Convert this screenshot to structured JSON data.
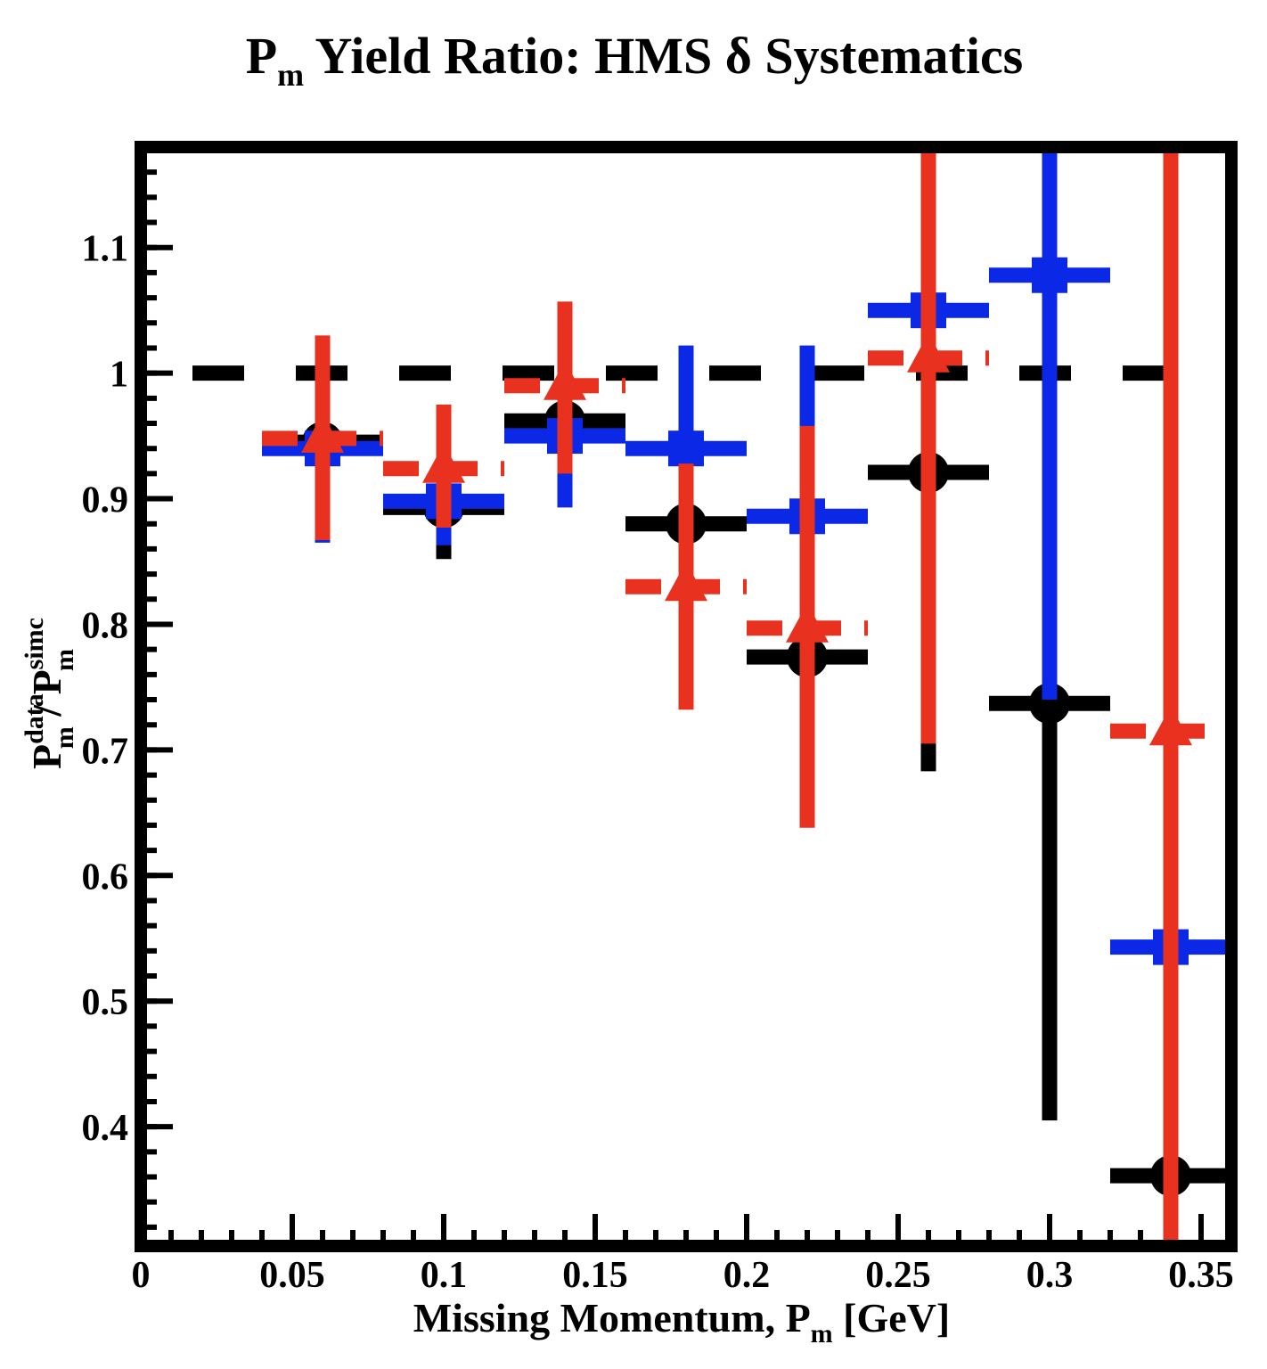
{
  "chart_data": {
    "type": "scatter",
    "title": "P",
    "title_sub": "m",
    "title_rest": " Yield Ratio: HMS  δ Systematics",
    "xlabel": "Missing Momentum, P",
    "xlabel_sub": "m",
    "xlabel_rest": " [GeV]",
    "ylabel_num": "P",
    "ylabel_num_sup": "data",
    "ylabel_num_sub": "m",
    "ylabel_sep": " / P",
    "ylabel_den_sup": "simc",
    "ylabel_den_sub": "m",
    "xlim": [
      0,
      0.36
    ],
    "ylim": [
      0.305,
      1.18
    ],
    "x_ticks": [
      "0",
      "0.05",
      "0.1",
      "0.15",
      "0.2",
      "0.25",
      "0.3",
      "0.35"
    ],
    "x_tick_values": [
      0,
      0.05,
      0.1,
      0.15,
      0.2,
      0.25,
      0.3,
      0.35
    ],
    "y_ticks": [
      "0.4",
      "0.5",
      "0.6",
      "0.7",
      "0.8",
      "0.9",
      "1",
      "1.1"
    ],
    "y_tick_values": [
      0.4,
      0.5,
      0.6,
      0.7,
      0.8,
      0.9,
      1.0,
      1.1
    ],
    "reference_line": {
      "y": 1.0,
      "style": "dashed",
      "color": "#000000"
    },
    "grid": false,
    "legend": "none",
    "bin_half_width": 0.02,
    "series": [
      {
        "color": "#000000",
        "marker": "circle",
        "line_style": "solid",
        "x": [
          0.06,
          0.1,
          0.14,
          0.18,
          0.22,
          0.26,
          0.3,
          0.34
        ],
        "y": [
          0.945,
          0.893,
          0.962,
          0.88,
          0.774,
          0.921,
          0.737,
          0.361
        ],
        "y_err_low": [
          0.945,
          0.852,
          0.962,
          0.845,
          0.774,
          0.683,
          0.405,
          0.305
        ],
        "y_err_high": [
          0.945,
          0.893,
          0.962,
          0.88,
          0.774,
          0.921,
          0.737,
          0.361
        ]
      },
      {
        "color": "#0a28e6",
        "marker": "square",
        "line_style": "solid",
        "x": [
          0.06,
          0.1,
          0.14,
          0.18,
          0.22,
          0.26,
          0.3,
          0.34
        ],
        "y": [
          0.94,
          0.898,
          0.95,
          0.94,
          0.886,
          1.05,
          1.078,
          0.543
        ],
        "y_err_low": [
          0.865,
          0.863,
          0.893,
          0.94,
          0.886,
          1.05,
          0.74,
          0.543
        ],
        "y_err_high": [
          0.97,
          0.94,
          0.985,
          1.022,
          1.022,
          1.09,
          1.18,
          0.735
        ]
      },
      {
        "color": "#e8311f",
        "marker": "triangle",
        "line_style": "dashed",
        "x": [
          0.06,
          0.1,
          0.14,
          0.18,
          0.22,
          0.26,
          0.3,
          0.34
        ],
        "y": [
          0.948,
          0.924,
          0.99,
          0.83,
          0.797,
          1.012,
          null,
          0.715
        ],
        "y_err_low": [
          0.867,
          0.877,
          0.92,
          0.732,
          0.638,
          0.705,
          null,
          0.305
        ],
        "y_err_high": [
          1.03,
          0.975,
          1.057,
          0.928,
          0.958,
          1.18,
          null,
          1.18
        ]
      }
    ]
  }
}
